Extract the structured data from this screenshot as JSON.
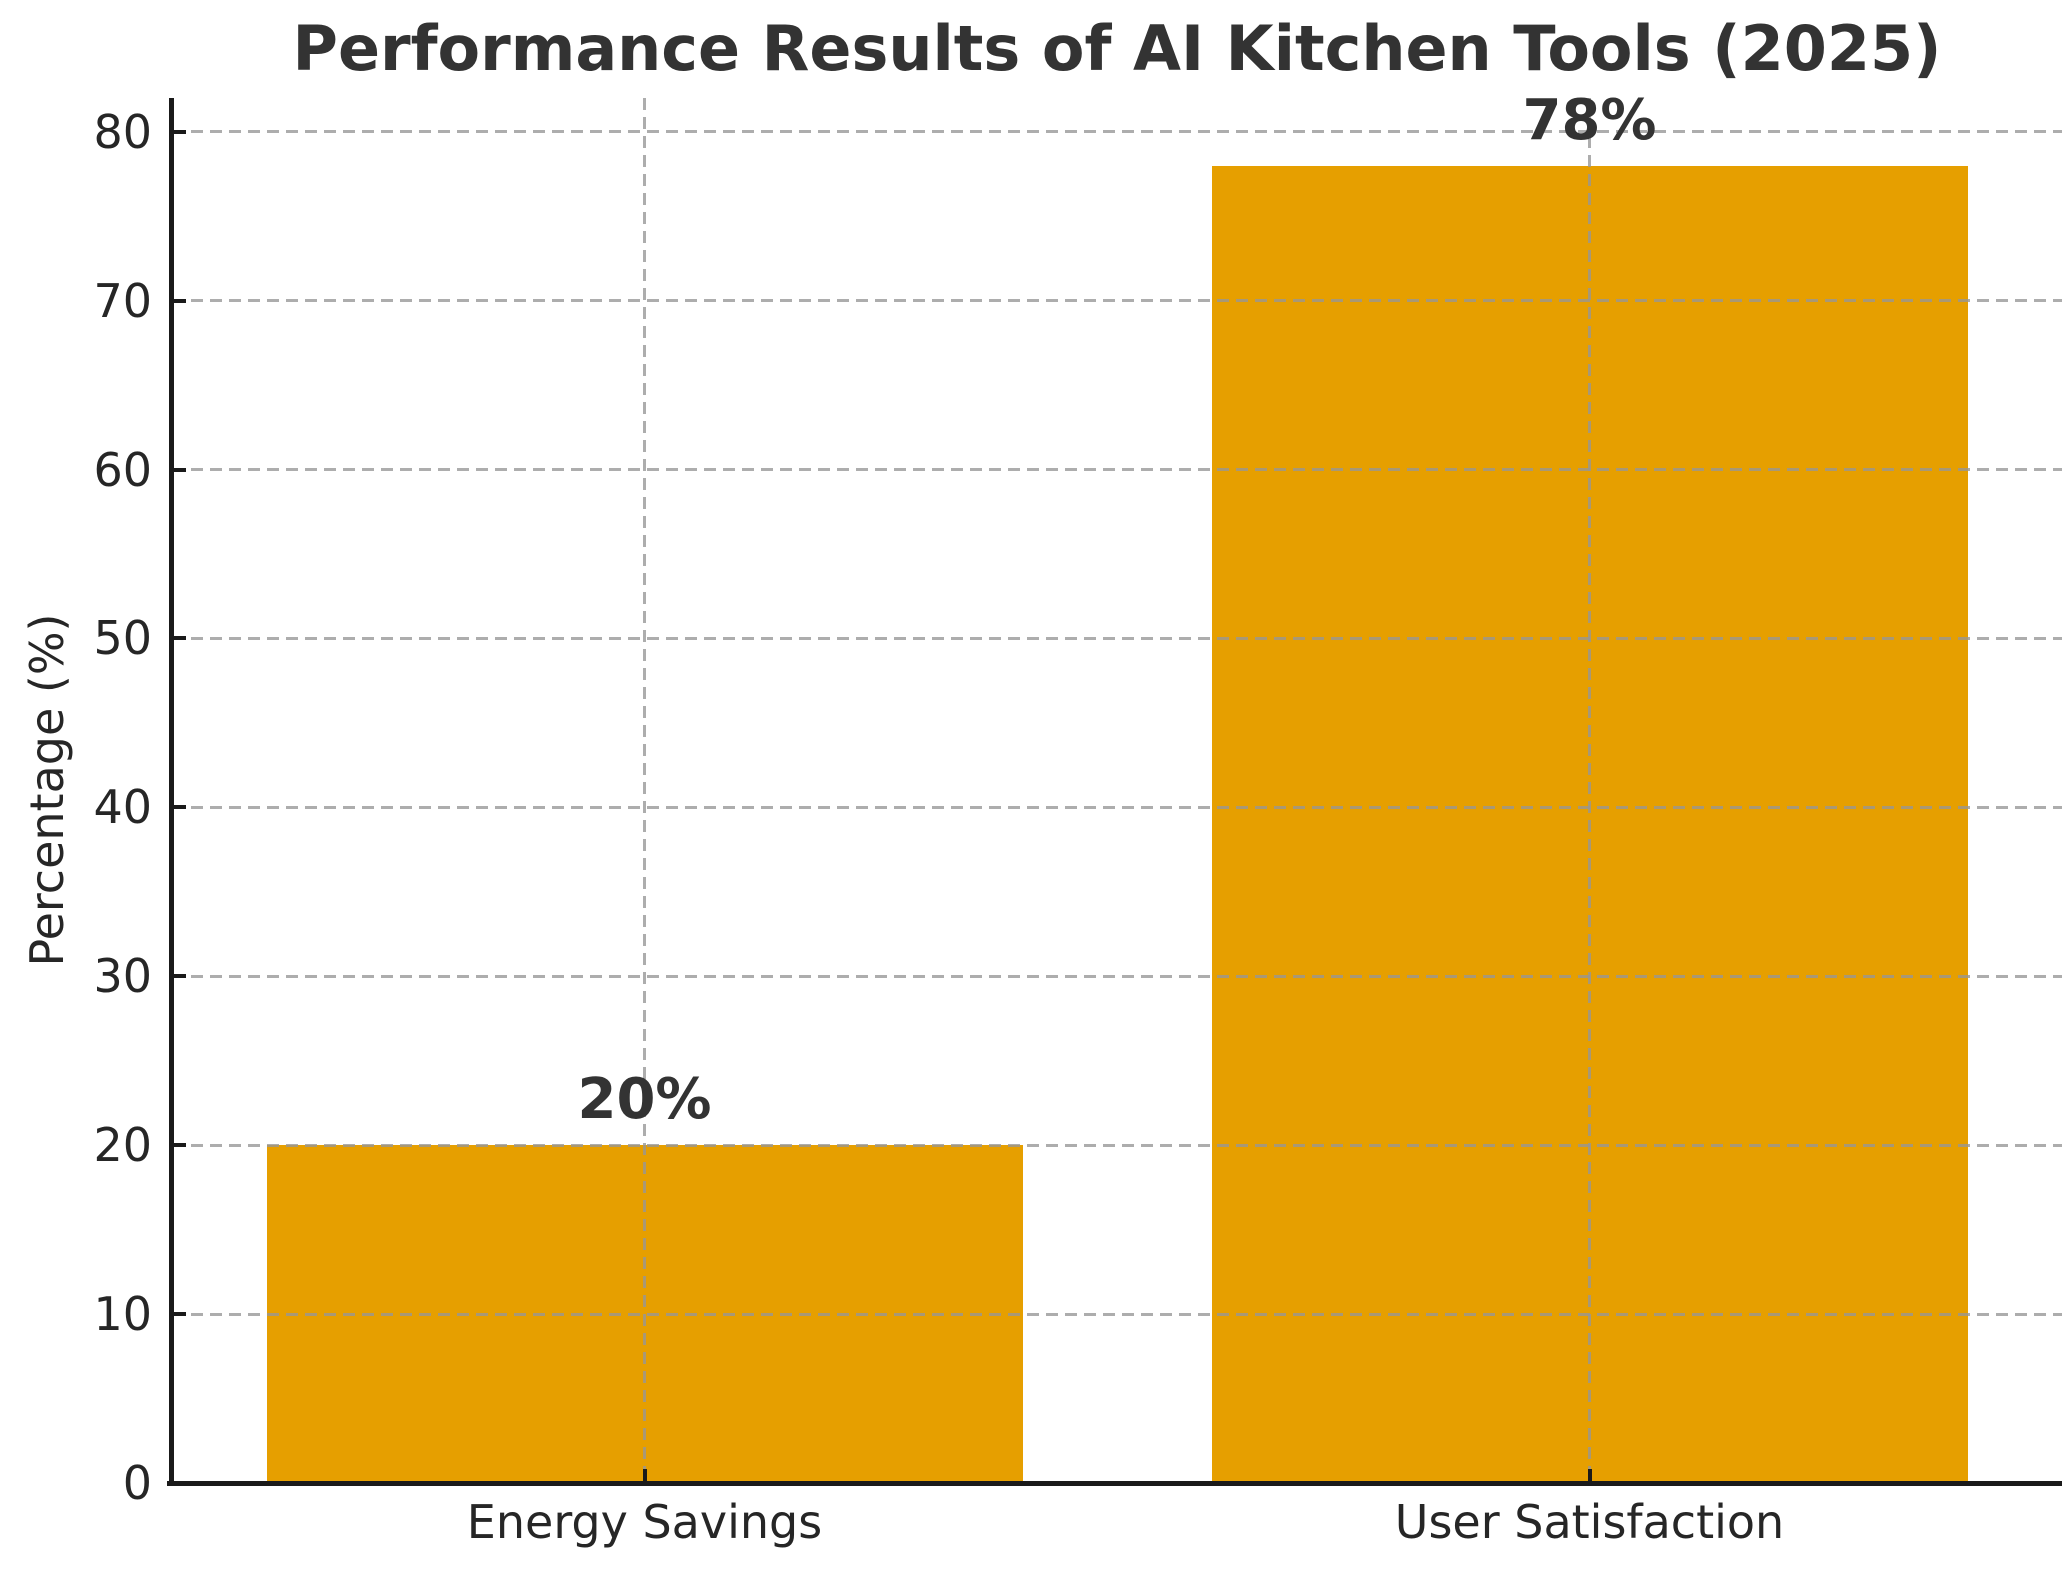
{
  "chart_data": {
    "type": "bar",
    "title": "Performance Results of AI Kitchen Tools (2025)",
    "categories": [
      "Energy Savings",
      "User Satisfaction"
    ],
    "values": [
      20,
      78
    ],
    "value_labels": [
      "20%",
      "78%"
    ],
    "xlabel": "",
    "ylabel": "Percentage (%)",
    "ylim": [
      0,
      82
    ],
    "yticks": [
      0,
      10,
      20,
      30,
      40,
      50,
      60,
      70,
      80
    ],
    "bar_color": "#E69F00",
    "bar_width_fraction": 0.8,
    "grid": "dashed, drawn above bars, horizontal and vertical at category centers",
    "grid_color": "#969696",
    "axis_color": "#1a1a1a",
    "text_color": "#262626",
    "background": "#FFFFFF",
    "legend": "none"
  }
}
